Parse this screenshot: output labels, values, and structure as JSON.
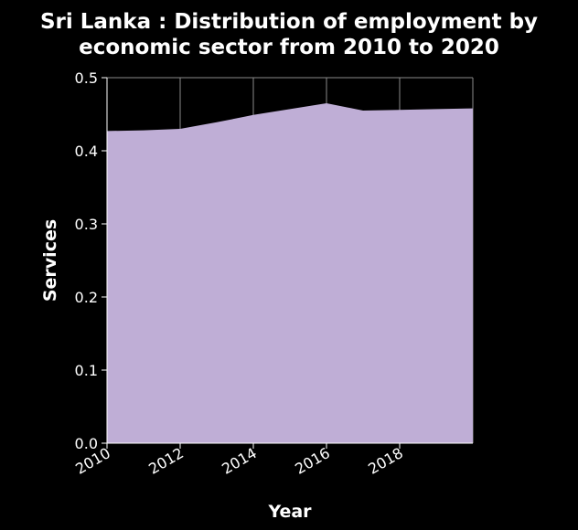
{
  "chart_data": {
    "type": "area",
    "title_lines": [
      "Sri Lanka : Distribution of employment by",
      "economic sector from 2010 to 2020"
    ],
    "xlabel": "Year",
    "ylabel": "Services",
    "x": [
      2010,
      2011,
      2012,
      2013,
      2014,
      2015,
      2016,
      2017,
      2018,
      2019,
      2020
    ],
    "series": [
      {
        "values": [
          0.427,
          0.428,
          0.43,
          0.439,
          0.449,
          0.457,
          0.465,
          0.455,
          0.456,
          0.457,
          0.458
        ]
      }
    ],
    "xlim": [
      2010,
      2020
    ],
    "ylim": [
      0,
      0.5
    ],
    "xticks": [
      2010,
      2012,
      2014,
      2016,
      2018
    ],
    "xtick_labels": [
      "2010",
      "2012",
      "2014",
      "2016",
      "2018"
    ],
    "yticks": [
      0.0,
      0.1,
      0.2,
      0.3,
      0.4,
      0.5
    ],
    "ytick_labels": [
      "0.0",
      "0.1",
      "0.2",
      "0.3",
      "0.4",
      "0.5"
    ],
    "grid": true,
    "background_color": "#000000",
    "fill_color": "#bfaed6",
    "grid_color": "#8a8a8a",
    "text_color": "#ffffff"
  }
}
